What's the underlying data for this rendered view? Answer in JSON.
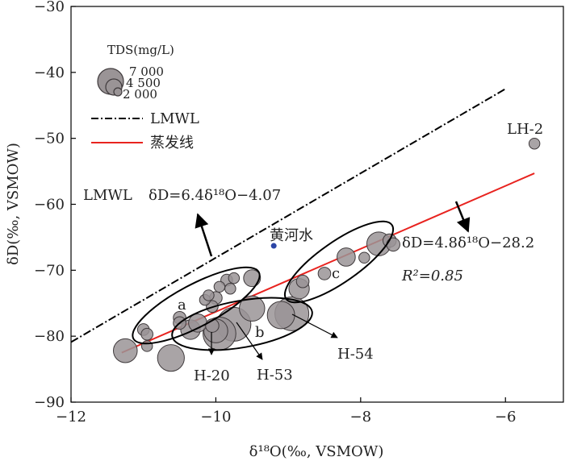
{
  "chart_data": {
    "type": "scatter",
    "xlabel": "δ¹⁸O(‰, VSMOW)",
    "ylabel": "δD(‰, VSMOW)",
    "xlim": [
      -12,
      -5.2
    ],
    "ylim": [
      -90,
      -30
    ],
    "xticks": [
      -12,
      -10,
      -8,
      -6
    ],
    "yticks": [
      -90,
      -80,
      -70,
      -60,
      -50,
      -40,
      -30
    ],
    "grid": false,
    "legend": {
      "title": "TDS(mg/L)",
      "size_levels": [
        "7 000",
        "4 500",
        "2 000"
      ],
      "lines": [
        {
          "label": "LMWL",
          "style": "dash-dot",
          "color": "#000000"
        },
        {
          "label": "蒸发线",
          "style": "solid",
          "color": "#e8231f"
        }
      ]
    },
    "lines": [
      {
        "name": "LMWL",
        "x": [
          -12,
          -6
        ],
        "y": [
          -80.9,
          -42.5
        ],
        "equation": "δD=6.4δ¹⁸O−4.07"
      },
      {
        "name": "蒸发线",
        "x": [
          -11.3,
          -5.6
        ],
        "y": [
          -82.5,
          -55.3
        ],
        "equation": "δD=4.8δ¹⁸O−28.2",
        "r2": "R²=0.85"
      }
    ],
    "points": [
      {
        "x": -11.25,
        "y": -82.2,
        "tds": 3000
      },
      {
        "x": -11.0,
        "y": -79.0,
        "tds": 400
      },
      {
        "x": -10.95,
        "y": -79.7,
        "tds": 400
      },
      {
        "x": -10.95,
        "y": -81.5,
        "tds": 300
      },
      {
        "x": -10.62,
        "y": -83.3,
        "tds": 4000
      },
      {
        "x": -10.5,
        "y": -77.2,
        "tds": 500
      },
      {
        "x": -10.5,
        "y": -78.0,
        "tds": 500
      },
      {
        "x": -10.35,
        "y": -79.0,
        "tds": 1800
      },
      {
        "x": -10.25,
        "y": -78.0,
        "tds": 1500
      },
      {
        "x": -10.15,
        "y": -74.5,
        "tds": 300
      },
      {
        "x": -10.1,
        "y": -73.8,
        "tds": 300
      },
      {
        "x": -10.05,
        "y": -75.5,
        "tds": 400
      },
      {
        "x": -10.0,
        "y": -74.2,
        "tds": 500
      },
      {
        "x": -9.95,
        "y": -72.5,
        "tds": 300
      },
      {
        "x": -9.85,
        "y": -71.5,
        "tds": 400
      },
      {
        "x": -9.8,
        "y": -72.8,
        "tds": 300
      },
      {
        "x": -9.75,
        "y": -71.2,
        "tds": 300
      },
      {
        "x": -10.05,
        "y": -78.4,
        "tds": 600
      },
      {
        "x": -10.0,
        "y": -79.2,
        "tds": 3000
      },
      {
        "x": -9.95,
        "y": -79.6,
        "tds": 6500
      },
      {
        "x": -9.75,
        "y": -78.2,
        "tds": 7000
      },
      {
        "x": -9.5,
        "y": -71.2,
        "tds": 1200
      },
      {
        "x": -9.5,
        "y": -75.8,
        "tds": 3500
      },
      {
        "x": -9.1,
        "y": -76.8,
        "tds": 4200
      },
      {
        "x": -8.95,
        "y": -76.6,
        "tds": 7000
      },
      {
        "x": -8.85,
        "y": -72.8,
        "tds": 2000
      },
      {
        "x": -8.8,
        "y": -71.7,
        "tds": 500
      },
      {
        "x": -8.5,
        "y": -70.5,
        "tds": 500
      },
      {
        "x": -8.2,
        "y": -68.0,
        "tds": 1500
      },
      {
        "x": -7.95,
        "y": -68.1,
        "tds": 300
      },
      {
        "x": -7.75,
        "y": -66.0,
        "tds": 3000
      },
      {
        "x": -7.6,
        "y": -65.5,
        "tds": 600
      },
      {
        "x": -7.55,
        "y": -66.1,
        "tds": 600
      },
      {
        "x": -5.6,
        "y": -50.8,
        "tds": 300
      }
    ],
    "yellow_river_point": {
      "label": "黄河水",
      "x": -9.2,
      "y": -66.3,
      "color": "#2b45a6"
    },
    "groups": [
      {
        "label": "a"
      },
      {
        "label": "b"
      },
      {
        "label": "c"
      }
    ],
    "annotations": [
      {
        "text": "LH-2"
      },
      {
        "text": "H-20"
      },
      {
        "text": "H-53"
      },
      {
        "text": "H-54"
      },
      {
        "text": "LMWL"
      }
    ],
    "colors": {
      "marker_fill": "#9a9496",
      "marker_stroke": "#3f3a3c",
      "evap_line": "#e8231f",
      "lmwl_line": "#000000",
      "yellow_river": "#2b45a6"
    }
  }
}
